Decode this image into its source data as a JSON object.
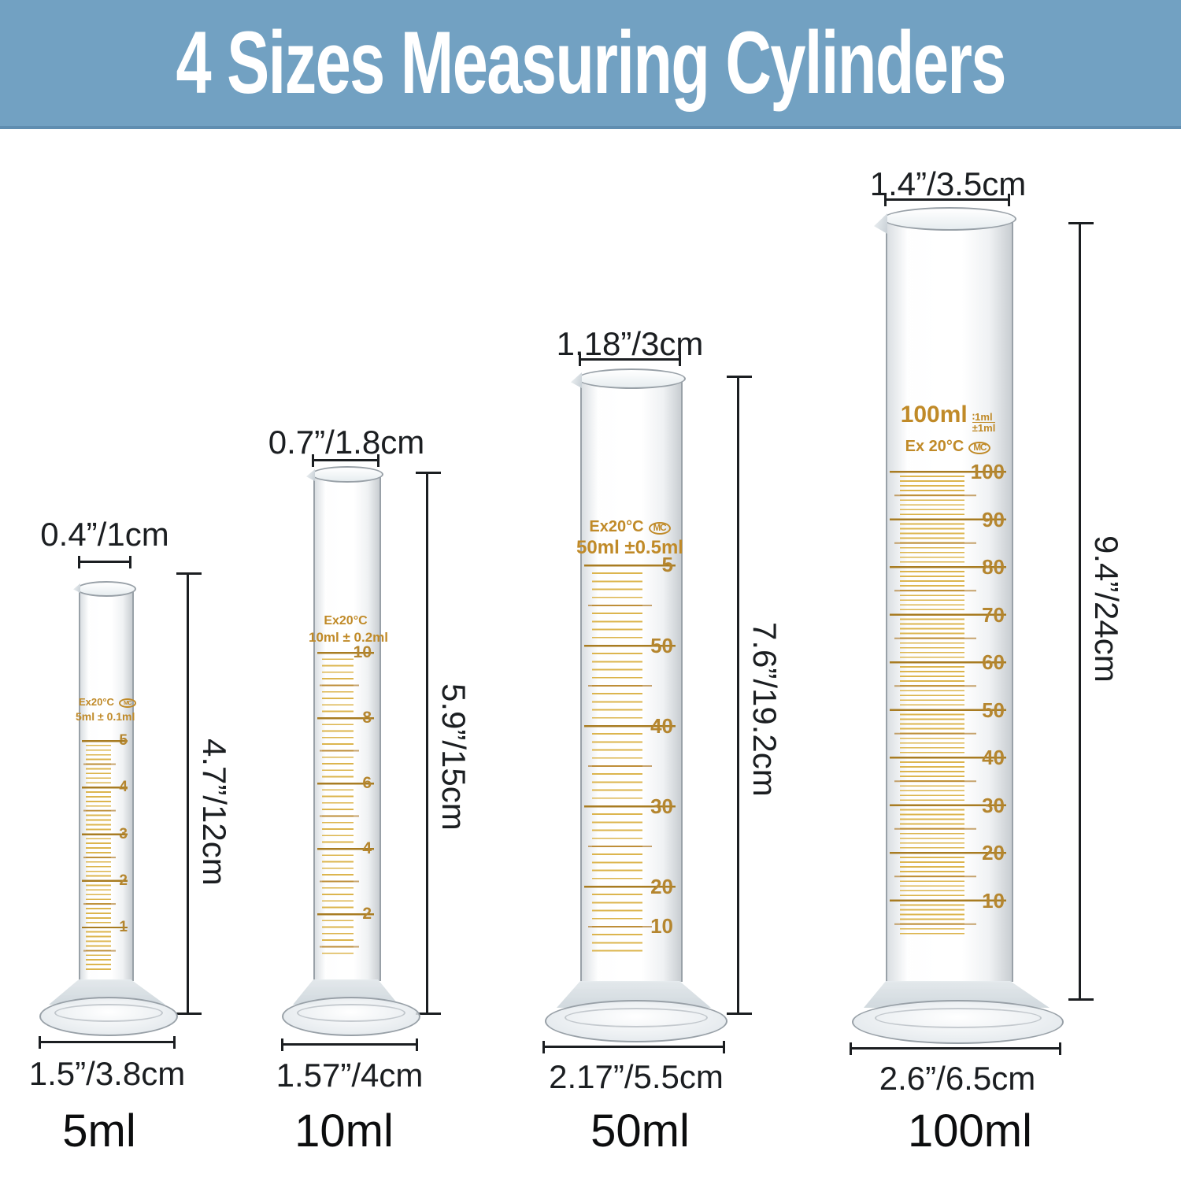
{
  "header": {
    "title": "4 Sizes Measuring Cylinders",
    "bg_color": "#72a1c2",
    "text_color": "#ffffff"
  },
  "colors": {
    "dimension": "#1b1e21",
    "glass_marking": "#c08a28",
    "graduation_number": "#b5862f",
    "graduation_minor": "#dcb54e",
    "graduation_major": "#a87c22"
  },
  "cylinders": [
    {
      "capacity": "5ml",
      "top_diameter": "0.4”/1cm",
      "height": "4.7”/12cm",
      "base_diameter": "1.5”/3.8cm",
      "glass_line1": "Ex20°C",
      "glass_logo": "MC",
      "glass_line2": "5ml ± 0.1ml",
      "scale_numbers": [
        "5",
        "4",
        "3",
        "2",
        "1"
      ]
    },
    {
      "capacity": "10ml",
      "top_diameter": "0.7”/1.8cm",
      "height": "5.9”/15cm",
      "base_diameter": "1.57”/4cm",
      "glass_line1": "Ex20°C",
      "glass_line2": "10ml ± 0.2ml",
      "scale_numbers": [
        "10",
        "8",
        "6",
        "4",
        "2"
      ]
    },
    {
      "capacity": "50ml",
      "top_diameter": "1.18”/3cm",
      "height": "7.6”/19.2cm",
      "base_diameter": "2.17”/5.5cm",
      "glass_line1": "Ex20°C",
      "glass_logo": "MC",
      "glass_line2": "50ml ±0.5ml",
      "scale_numbers": [
        "50",
        "40",
        "30",
        "20",
        "10",
        "5"
      ]
    },
    {
      "capacity": "100ml",
      "top_diameter": "1.4”/3.5cm",
      "height": "9.4”/24cm",
      "base_diameter": "2.6”/6.5cm",
      "glass_line1": "100ml",
      "glass_sub_top": "∶1ml",
      "glass_sub_bottom": "±1ml",
      "glass_line2": "Ex 20°C",
      "glass_logo": "MC",
      "scale_numbers": [
        "100",
        "90",
        "80",
        "70",
        "60",
        "50",
        "40",
        "30",
        "20",
        "10"
      ]
    }
  ]
}
